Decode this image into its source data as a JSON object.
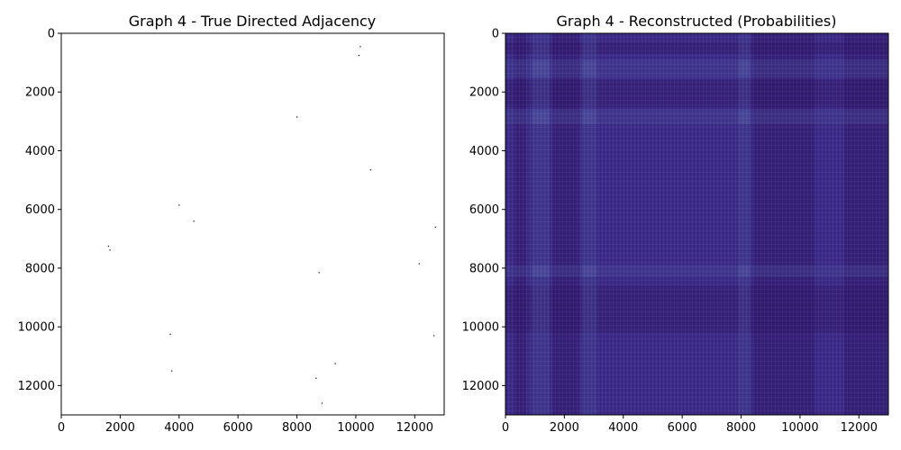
{
  "chart_data": [
    {
      "type": "heatmap",
      "title": "Graph 4 - True Directed Adjacency",
      "xlim": [
        0,
        13000
      ],
      "ylim": [
        13000,
        0
      ],
      "xticks": [
        0,
        2000,
        4000,
        6000,
        8000,
        10000,
        12000
      ],
      "yticks": [
        0,
        2000,
        4000,
        6000,
        8000,
        10000,
        12000
      ],
      "colormap": "binary",
      "background": "#ffffff",
      "edge_color": "#000000",
      "nonzero_points": [
        {
          "x": 10150,
          "y": 450
        },
        {
          "x": 10100,
          "y": 750
        },
        {
          "x": 8000,
          "y": 2850
        },
        {
          "x": 10500,
          "y": 4650
        },
        {
          "x": 4000,
          "y": 5850
        },
        {
          "x": 4500,
          "y": 6400
        },
        {
          "x": 12700,
          "y": 6600
        },
        {
          "x": 1600,
          "y": 7250
        },
        {
          "x": 1650,
          "y": 7380
        },
        {
          "x": 12150,
          "y": 7850
        },
        {
          "x": 8750,
          "y": 8150
        },
        {
          "x": 3700,
          "y": 10250
        },
        {
          "x": 12650,
          "y": 10300
        },
        {
          "x": 9300,
          "y": 11250
        },
        {
          "x": 3750,
          "y": 11500
        },
        {
          "x": 8650,
          "y": 11750
        },
        {
          "x": 8850,
          "y": 12600
        }
      ]
    },
    {
      "type": "heatmap",
      "title": "Graph 4 - Reconstructed (Probabilities)",
      "xlim": [
        0,
        13000
      ],
      "ylim": [
        13000,
        0
      ],
      "xticks": [
        0,
        2000,
        4000,
        6000,
        8000,
        10000,
        12000
      ],
      "yticks": [
        0,
        2000,
        4000,
        6000,
        8000,
        10000,
        12000
      ],
      "colormap": "viridis",
      "base_color": "#3b2a88",
      "value_range": [
        0.0,
        0.1
      ],
      "light_column_bands": [
        {
          "from": 900,
          "to": 1500
        },
        {
          "from": 2600,
          "to": 3100
        },
        {
          "from": 7900,
          "to": 8300
        }
      ],
      "light_row_bands": [
        {
          "from": 900,
          "to": 1500
        },
        {
          "from": 2600,
          "to": 3100
        },
        {
          "from": 7900,
          "to": 8300
        }
      ],
      "dark_column_bands": [
        {
          "from": 300,
          "to": 700
        },
        {
          "from": 1600,
          "to": 2500
        },
        {
          "from": 8400,
          "to": 10500
        },
        {
          "from": 11500,
          "to": 13000
        }
      ],
      "dark_row_bands": [
        {
          "from": 300,
          "to": 700
        },
        {
          "from": 1600,
          "to": 2500
        },
        {
          "from": 8600,
          "to": 10200
        }
      ]
    }
  ]
}
